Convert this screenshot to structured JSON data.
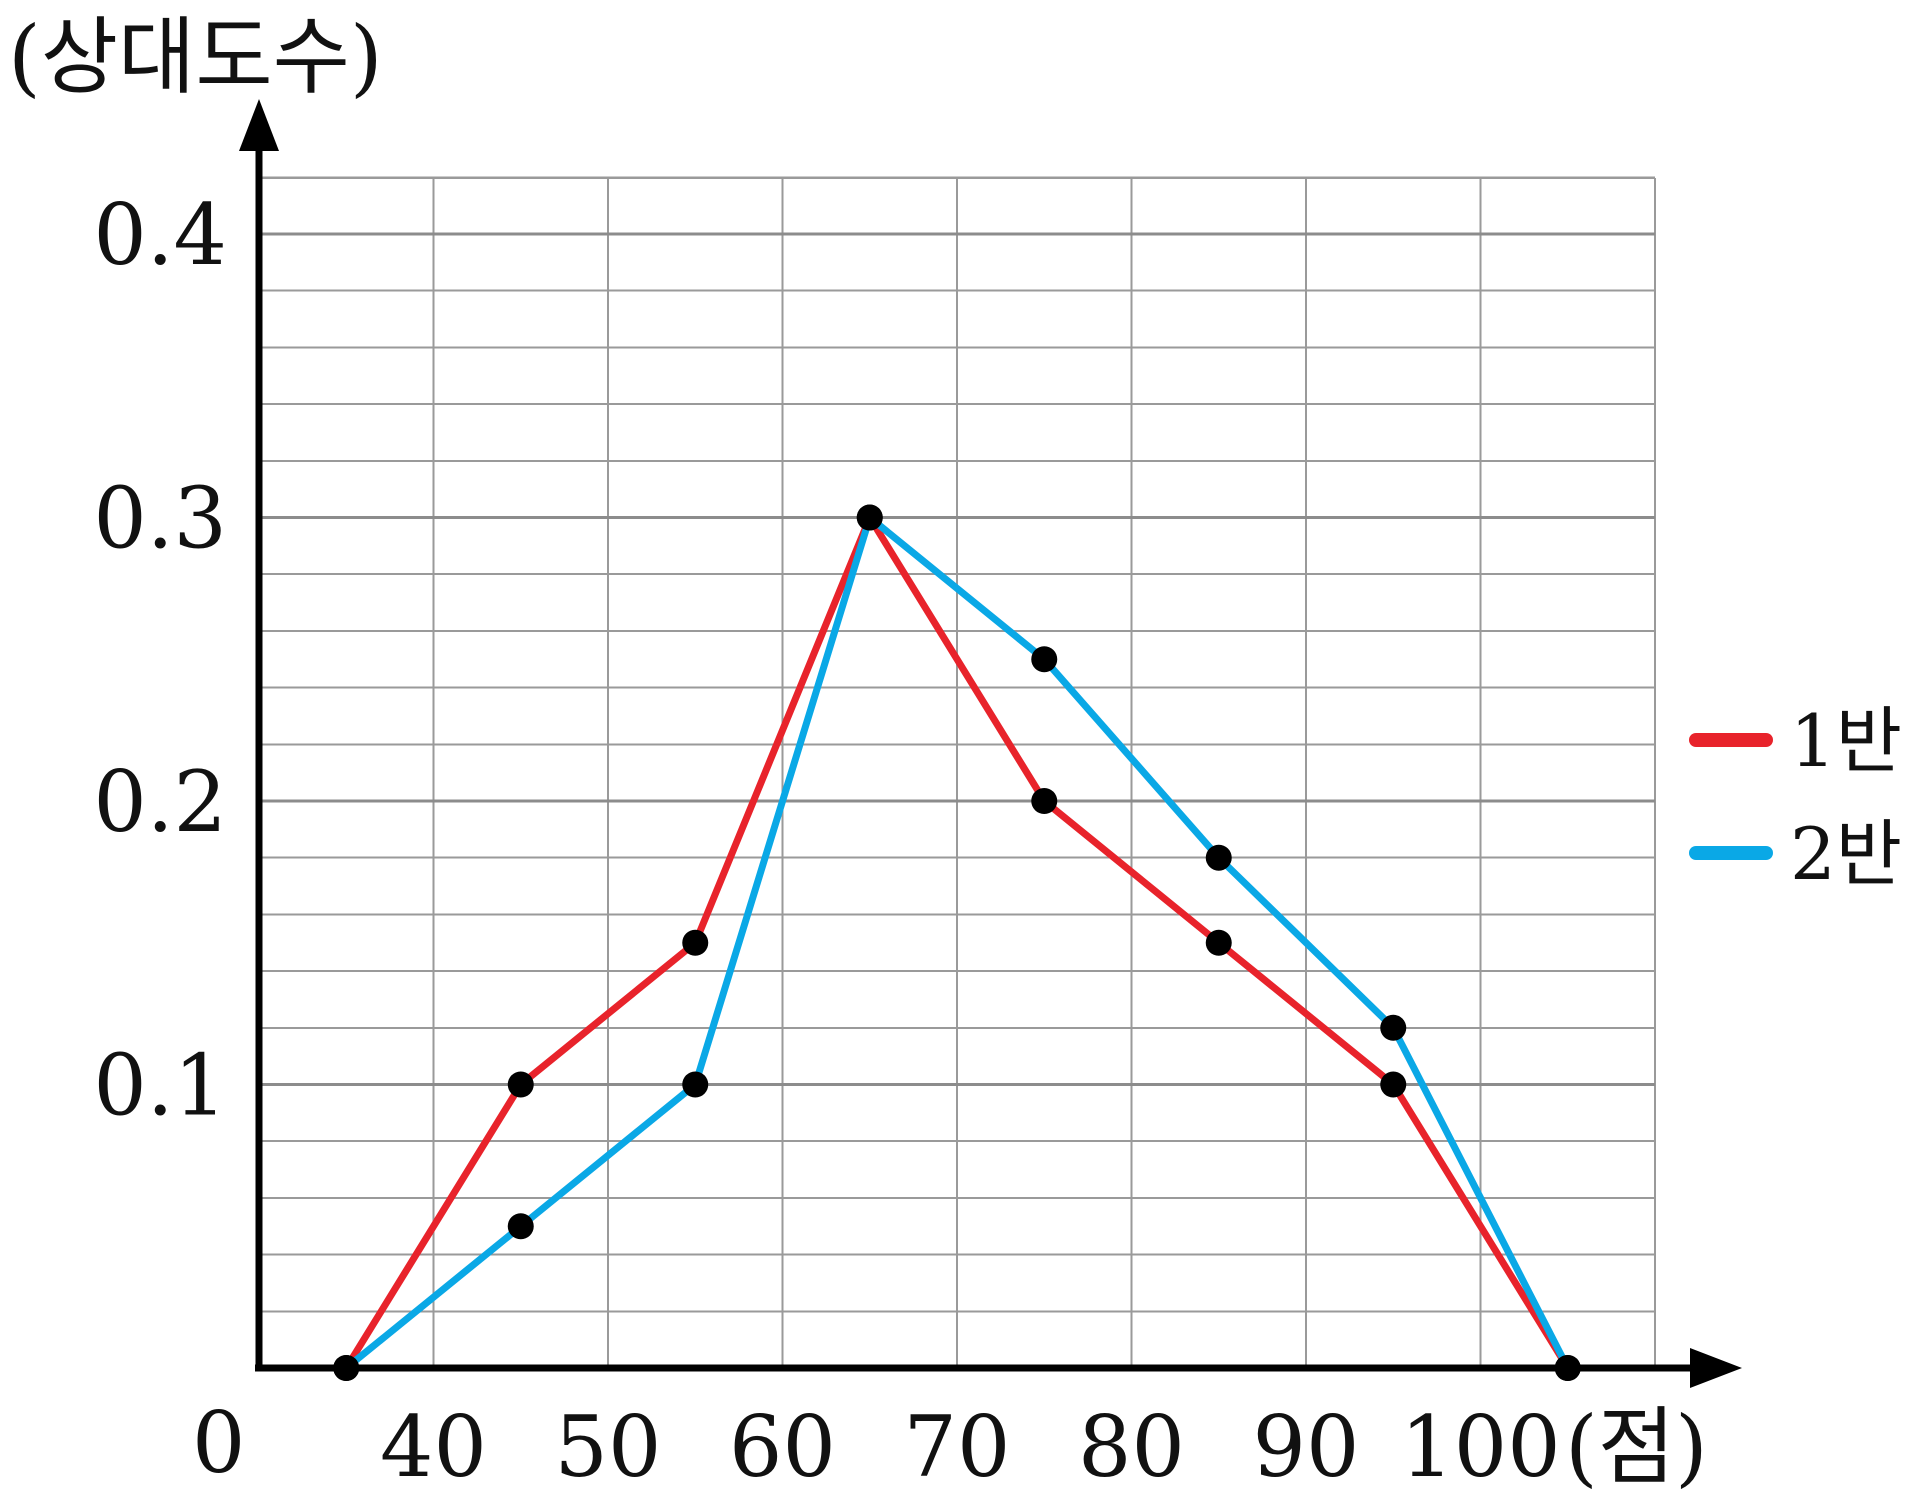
{
  "chart_data": {
    "type": "line",
    "x_unit_label": "(점)",
    "y_axis_label": "(상대도수)",
    "origin_label": "0",
    "x_ticks": [
      40,
      50,
      60,
      70,
      80,
      90,
      100
    ],
    "x_tick_labels": [
      "40",
      "50",
      "60",
      "70",
      "80",
      "90",
      "100"
    ],
    "y_ticks": [
      0.1,
      0.2,
      0.3,
      0.4
    ],
    "y_tick_labels": [
      "0.1",
      "0.2",
      "0.3",
      "0.4"
    ],
    "xlim": [
      30,
      110
    ],
    "ylim": [
      0,
      0.42
    ],
    "grid": true,
    "minor_y_step": 0.02,
    "x_grid_step": 10,
    "legend_position": "right",
    "series": [
      {
        "name": "1반",
        "color": "#e8232b",
        "points": [
          {
            "x": 35,
            "y": 0
          },
          {
            "x": 45,
            "y": 0.1
          },
          {
            "x": 55,
            "y": 0.15
          },
          {
            "x": 65,
            "y": 0.3
          },
          {
            "x": 75,
            "y": 0.2
          },
          {
            "x": 85,
            "y": 0.15
          },
          {
            "x": 95,
            "y": 0.1
          },
          {
            "x": 105,
            "y": 0
          }
        ]
      },
      {
        "name": "2반",
        "color": "#0aa8e6",
        "points": [
          {
            "x": 35,
            "y": 0
          },
          {
            "x": 45,
            "y": 0.05
          },
          {
            "x": 55,
            "y": 0.1
          },
          {
            "x": 65,
            "y": 0.3
          },
          {
            "x": 75,
            "y": 0.25
          },
          {
            "x": 85,
            "y": 0.18
          },
          {
            "x": 95,
            "y": 0.12
          },
          {
            "x": 105,
            "y": 0
          }
        ]
      }
    ]
  }
}
